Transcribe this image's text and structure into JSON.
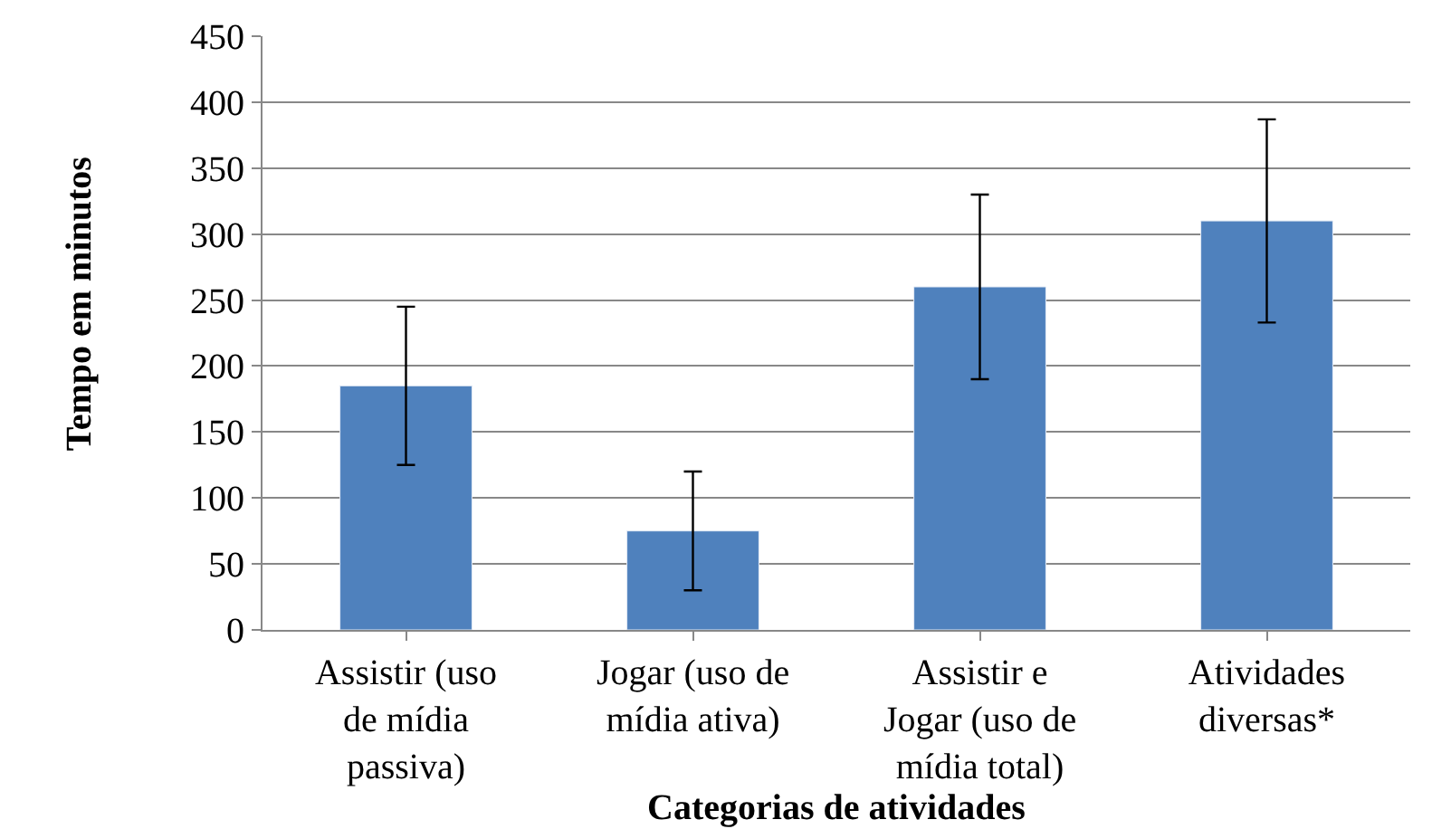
{
  "chart_data": {
    "type": "bar",
    "xlabel": "Categorias de atividades",
    "ylabel": "Tempo em minutos",
    "categories": [
      "Assistir (uso de mídia passiva)",
      "Jogar (uso de mídia ativa)",
      "Assistir e Jogar (uso de mídia total)",
      "Atividades diversas*"
    ],
    "values": [
      185,
      75,
      260,
      310
    ],
    "errors": [
      60,
      45,
      70,
      77
    ],
    "color": "#4f81bd",
    "ylim": [
      0,
      450
    ],
    "yticks": [
      0,
      50,
      100,
      150,
      200,
      250,
      300,
      350,
      400,
      450
    ],
    "grid": "y"
  }
}
